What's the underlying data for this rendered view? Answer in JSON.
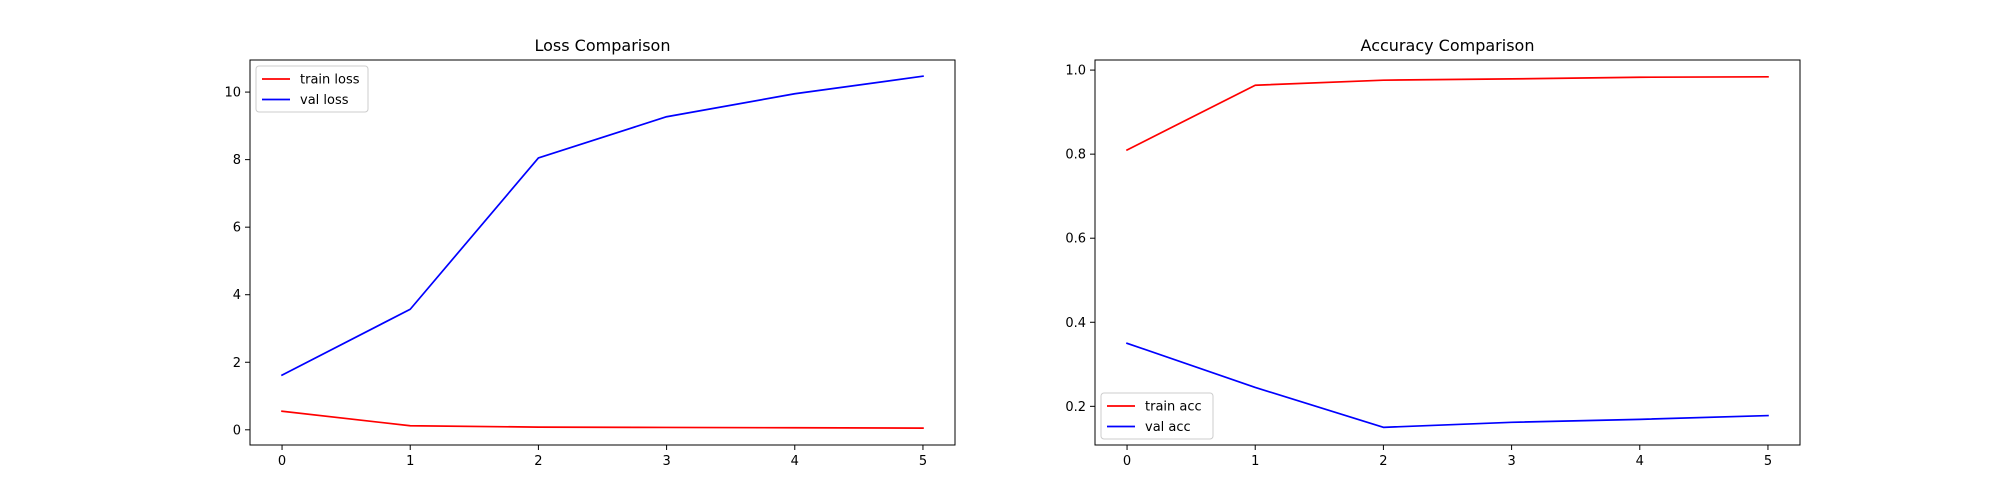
{
  "chart_data": [
    {
      "type": "line",
      "title": "Loss Comparison",
      "xlabel": "",
      "ylabel": "",
      "x": [
        0,
        1,
        2,
        3,
        4,
        5
      ],
      "xlim": [
        -0.25,
        5.25
      ],
      "ylim": [
        -0.45,
        10.95
      ],
      "xticks": [
        0,
        1,
        2,
        3,
        4,
        5
      ],
      "yticks": [
        0,
        2,
        4,
        6,
        8,
        10
      ],
      "grid": false,
      "legend": "upper-left",
      "series": [
        {
          "name": "train loss",
          "color": "#ff0000",
          "values": [
            0.55,
            0.12,
            0.08,
            0.07,
            0.06,
            0.05
          ]
        },
        {
          "name": "val loss",
          "color": "#0000ff",
          "values": [
            1.62,
            3.57,
            8.05,
            9.27,
            9.95,
            10.47
          ]
        }
      ]
    },
    {
      "type": "line",
      "title": "Accuracy Comparison",
      "xlabel": "",
      "ylabel": "",
      "x": [
        0,
        1,
        2,
        3,
        4,
        5
      ],
      "xlim": [
        -0.25,
        5.25
      ],
      "ylim": [
        0.108,
        1.024
      ],
      "xticks": [
        0,
        1,
        2,
        3,
        4,
        5
      ],
      "yticks": [
        0.2,
        0.4,
        0.6,
        0.8,
        1.0
      ],
      "ytick_labels": [
        "0.2",
        "0.4",
        "0.6",
        "0.8",
        "1.0"
      ],
      "grid": false,
      "legend": "lower-left",
      "series": [
        {
          "name": "train acc",
          "color": "#ff0000",
          "values": [
            0.81,
            0.964,
            0.976,
            0.979,
            0.983,
            0.984
          ]
        },
        {
          "name": "val acc",
          "color": "#0000ff",
          "values": [
            0.35,
            0.245,
            0.15,
            0.162,
            0.169,
            0.178
          ]
        }
      ]
    }
  ]
}
